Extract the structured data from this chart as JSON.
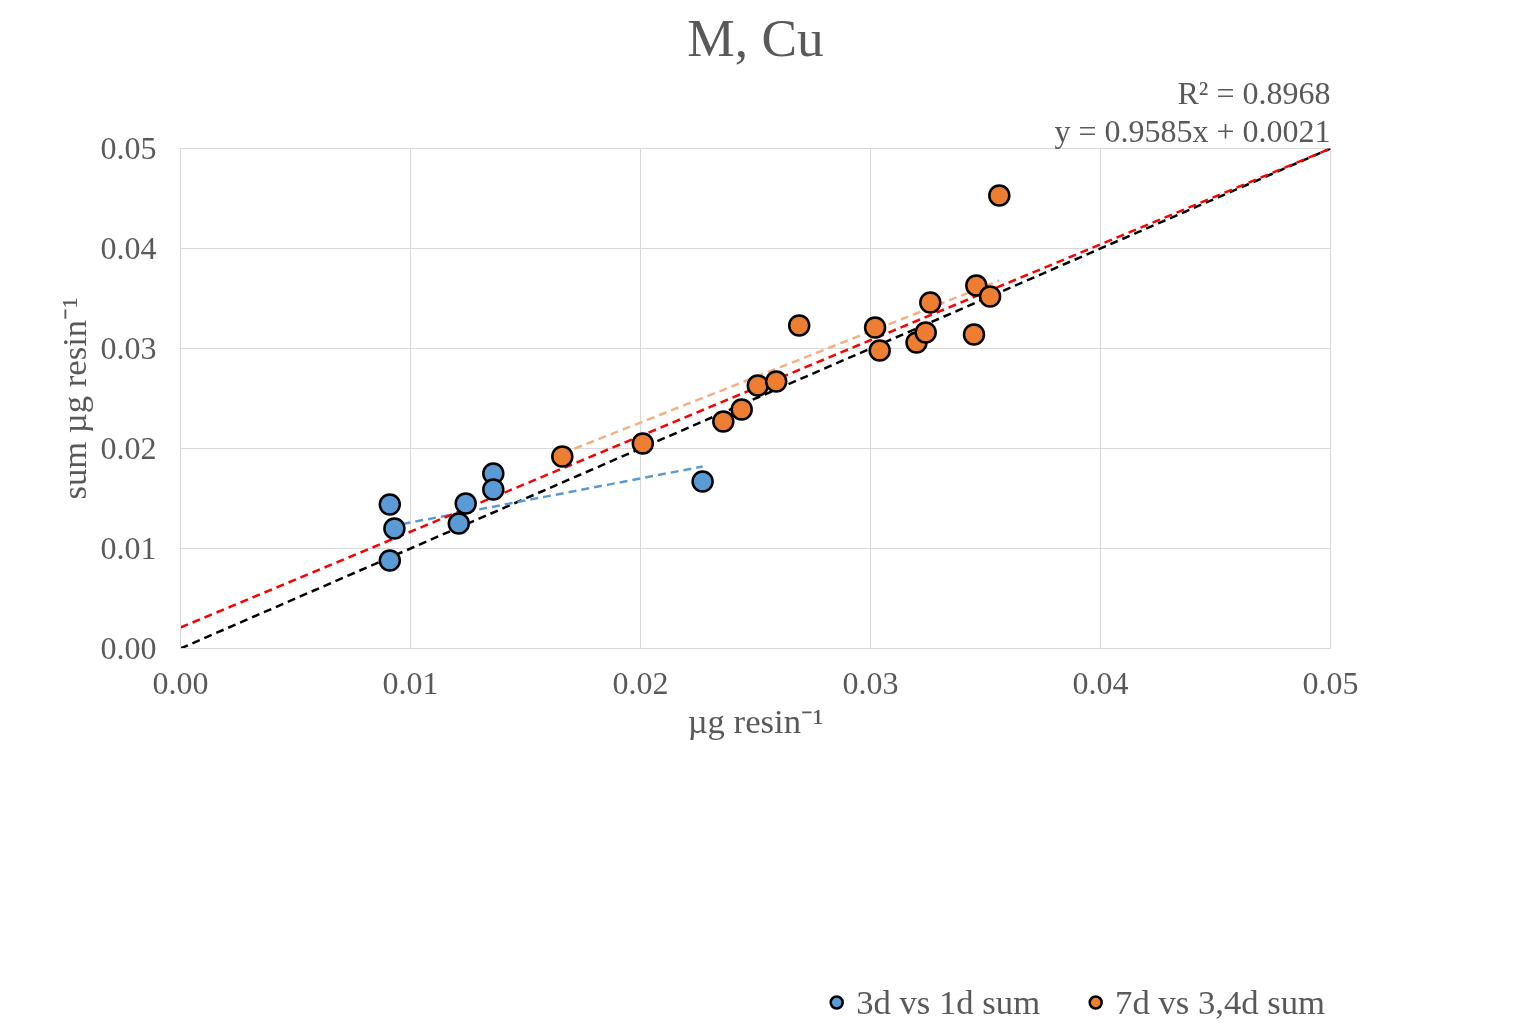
{
  "chart_data": {
    "type": "scatter",
    "title": "M, Cu",
    "xlabel": "µg resin⁻¹",
    "ylabel": "sum µg resin⁻¹",
    "annotations": [
      "y = 0.9585x + 0.0021",
      "R² = 0.8968"
    ],
    "xlim": [
      0,
      0.05
    ],
    "ylim": [
      0,
      0.05
    ],
    "xticks": [
      {
        "value": 0,
        "label": "0.00"
      },
      {
        "value": 0.01,
        "label": "0.01"
      },
      {
        "value": 0.02,
        "label": "0.02"
      },
      {
        "value": 0.03,
        "label": "0.03"
      },
      {
        "value": 0.04,
        "label": "0.04"
      },
      {
        "value": 0.05,
        "label": "0.05"
      }
    ],
    "yticks": [
      {
        "value": 0,
        "label": "0.00"
      },
      {
        "value": 0.01,
        "label": "0.01"
      },
      {
        "value": 0.02,
        "label": "0.02"
      },
      {
        "value": 0.03,
        "label": "0.03"
      },
      {
        "value": 0.04,
        "label": "0.04"
      },
      {
        "value": 0.05,
        "label": "0.05"
      }
    ],
    "grid": true,
    "legend": "bottom",
    "marker": "circle",
    "series": [
      {
        "type": "line",
        "marker": "none",
        "line_style": "dashed",
        "color": "#000000",
        "x": [
          0,
          0.05
        ],
        "values": [
          0,
          0.05
        ]
      },
      {
        "type": "line",
        "marker": "none",
        "line_style": "dashed",
        "color": "#5b9bd5",
        "x": [
          0.0091,
          0.0227
        ],
        "values": [
          0.0122,
          0.0182
        ]
      },
      {
        "type": "line",
        "marker": "none",
        "line_style": "dashed",
        "color": "#f4b183",
        "x": [
          0.0166,
          0.0356
        ],
        "values": [
          0.0195,
          0.0368
        ]
      },
      {
        "type": "line",
        "marker": "none",
        "line_style": "dashed",
        "color": "#ff0000",
        "x": [
          0,
          0.05
        ],
        "values": [
          0.0021,
          0.05
        ]
      },
      {
        "name": "3d vs 1d sum",
        "color": "#5b9bd5",
        "x": [
          0.0091,
          0.0093,
          0.0091,
          0.0121,
          0.0124,
          0.0136,
          0.0136,
          0.0227
        ],
        "values": [
          0.0144,
          0.012,
          0.0088,
          0.0125,
          0.0145,
          0.0175,
          0.0159,
          0.0167
        ]
      },
      {
        "name": "7d vs 3,4d sum",
        "color": "#ed7d31",
        "x": [
          0.0166,
          0.0201,
          0.0236,
          0.0244,
          0.0251,
          0.0259,
          0.0269,
          0.0302,
          0.0304,
          0.032,
          0.0324,
          0.0326,
          0.0345,
          0.0346,
          0.0352,
          0.0356
        ],
        "values": [
          0.0192,
          0.0205,
          0.0227,
          0.0239,
          0.0263,
          0.0267,
          0.0323,
          0.0321,
          0.0298,
          0.0306,
          0.0316,
          0.0346,
          0.0314,
          0.0363,
          0.0352,
          0.0453
        ]
      }
    ]
  }
}
